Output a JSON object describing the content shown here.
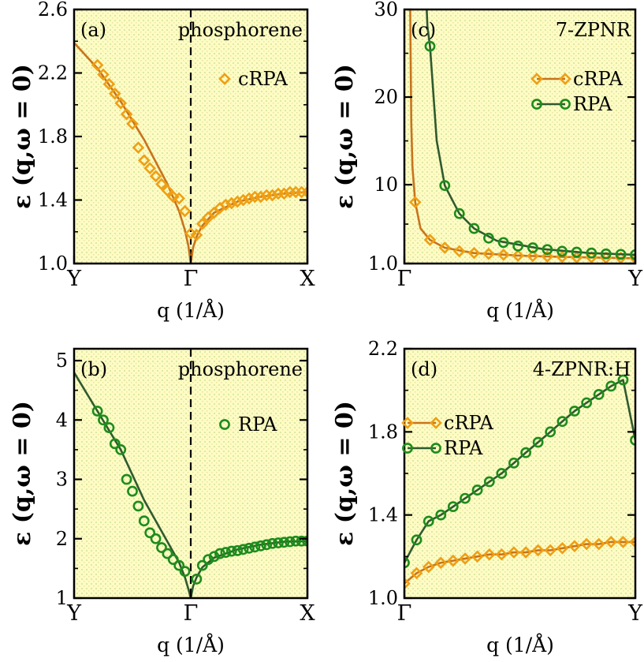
{
  "colors": {
    "crpa": "#ef9f14",
    "crpa_line": "#c8731c",
    "rpa": "#1d8c1d",
    "rpa_line": "#2f5a2f",
    "panel_bg": "#fdfcc4",
    "dot": "#d7e9a0"
  },
  "chart_data": [
    {
      "id": "a",
      "type": "line",
      "label": "(a)",
      "title": "phosphorene",
      "xlabel": "q (1/Å)",
      "ylabel": "ε (q,ω = 0)",
      "xlim": [
        0,
        2
      ],
      "ylim": [
        1.0,
        2.6
      ],
      "yticks": [
        1.0,
        1.4,
        1.8,
        2.2,
        2.6
      ],
      "ytick_labels": [
        "1.0",
        "1.4",
        "1.8",
        "2.2",
        "2.6"
      ],
      "xticks": [
        0,
        1,
        2
      ],
      "xtick_labels": [
        "Y",
        "Γ",
        "X"
      ],
      "vline": 1,
      "curve": {
        "x": [
          0,
          0.2,
          0.4,
          0.6,
          0.8,
          0.9,
          0.95,
          0.98,
          1.0,
          1.02,
          1.05,
          1.1,
          1.2,
          1.4,
          1.6,
          1.8,
          2.0
        ],
        "y": [
          2.39,
          2.23,
          2.02,
          1.78,
          1.5,
          1.33,
          1.21,
          1.11,
          1.0,
          1.1,
          1.17,
          1.24,
          1.32,
          1.39,
          1.42,
          1.44,
          1.45
        ]
      },
      "series": [
        {
          "name": "cRPA",
          "marker": "diamond",
          "x": [
            0.2,
            0.25,
            0.3,
            0.35,
            0.4,
            0.45,
            0.5,
            0.55,
            0.6,
            0.65,
            0.7,
            0.75,
            0.8,
            0.85,
            0.9,
            0.95,
            1.0,
            1.05,
            1.1,
            1.15,
            1.2,
            1.25,
            1.3,
            1.35,
            1.4,
            1.45,
            1.5,
            1.55,
            1.6,
            1.65,
            1.7,
            1.75,
            1.8,
            1.85,
            1.9,
            1.95,
            2.0
          ],
          "y": [
            2.25,
            2.19,
            2.13,
            2.07,
            2.01,
            1.94,
            1.88,
            1.73,
            1.65,
            1.6,
            1.55,
            1.5,
            1.46,
            1.42,
            1.41,
            1.33,
            1.19,
            1.18,
            1.25,
            1.29,
            1.32,
            1.35,
            1.37,
            1.38,
            1.39,
            1.4,
            1.41,
            1.42,
            1.42,
            1.43,
            1.43,
            1.44,
            1.44,
            1.45,
            1.45,
            1.45,
            1.45
          ]
        }
      ],
      "legend": [
        "cRPA"
      ]
    },
    {
      "id": "b",
      "type": "line",
      "label": "(b)",
      "title": "phosphorene",
      "xlabel": "q (1/Å)",
      "ylabel": "ε (q,ω = 0)",
      "xlim": [
        0,
        2
      ],
      "ylim": [
        1,
        5.2
      ],
      "yticks": [
        1,
        2,
        3,
        4,
        5
      ],
      "ytick_labels": [
        "1",
        "2",
        "3",
        "4",
        "5"
      ],
      "xticks": [
        0,
        1,
        2
      ],
      "xtick_labels": [
        "Y",
        "Γ",
        "X"
      ],
      "vline": 1,
      "curve": {
        "x": [
          0,
          0.2,
          0.4,
          0.6,
          0.8,
          0.9,
          0.95,
          0.98,
          1.0,
          1.02,
          1.05,
          1.1,
          1.2,
          1.4,
          1.6,
          1.8,
          2.0
        ],
        "y": [
          4.8,
          4.15,
          3.5,
          2.65,
          1.95,
          1.6,
          1.35,
          1.15,
          1.0,
          1.2,
          1.35,
          1.52,
          1.68,
          1.82,
          1.9,
          1.95,
          1.96
        ]
      },
      "series": [
        {
          "name": "RPA",
          "marker": "circle",
          "x": [
            0.2,
            0.25,
            0.3,
            0.35,
            0.4,
            0.45,
            0.5,
            0.55,
            0.6,
            0.65,
            0.7,
            0.75,
            0.8,
            0.85,
            0.9,
            0.95,
            1.05,
            1.1,
            1.15,
            1.2,
            1.25,
            1.3,
            1.35,
            1.4,
            1.45,
            1.5,
            1.55,
            1.6,
            1.65,
            1.7,
            1.75,
            1.8,
            1.85,
            1.9,
            1.95,
            2.0
          ],
          "y": [
            4.15,
            4.0,
            3.87,
            3.6,
            3.5,
            3.0,
            2.8,
            2.55,
            2.3,
            2.1,
            2.0,
            1.85,
            1.75,
            1.65,
            1.55,
            1.45,
            1.32,
            1.55,
            1.65,
            1.7,
            1.75,
            1.77,
            1.79,
            1.8,
            1.82,
            1.84,
            1.86,
            1.88,
            1.9,
            1.92,
            1.93,
            1.94,
            1.95,
            1.96,
            1.96,
            1.96
          ]
        }
      ],
      "legend": [
        "RPA"
      ]
    },
    {
      "id": "c",
      "type": "line",
      "label": "(c)",
      "title": "7-ZPNR",
      "xlabel": "q (1/Å)",
      "ylabel": "ε (q,ω = 0)",
      "xlim": [
        0,
        1
      ],
      "ylim": [
        1.0,
        30
      ],
      "yticks": [
        1.0,
        10,
        20,
        30
      ],
      "ytick_labels": [
        "1.0",
        "10",
        "20",
        "30"
      ],
      "xticks": [
        0,
        1
      ],
      "xtick_labels": [
        "Γ",
        "Y"
      ],
      "series": [
        {
          "name": "cRPA",
          "marker": "diamond",
          "x": [
            0.047,
            0.111,
            0.175,
            0.238,
            0.302,
            0.365,
            0.429,
            0.492,
            0.556,
            0.619,
            0.683,
            0.746,
            0.81,
            0.873,
            0.937,
            1.0
          ],
          "y": [
            8,
            3.7,
            2.8,
            2.4,
            2.2,
            2.1,
            2.0,
            1.9,
            1.85,
            1.8,
            1.75,
            1.7,
            1.7,
            1.65,
            1.65,
            1.6
          ],
          "line_x": [
            0.025,
            0.027,
            0.03,
            0.035,
            0.047,
            0.07,
            0.111,
            0.175,
            0.3,
            0.5,
            0.7,
            1.0
          ],
          "line_y": [
            31,
            25,
            17,
            12,
            8,
            5,
            3.7,
            2.8,
            2.2,
            1.9,
            1.75,
            1.6
          ]
        },
        {
          "name": "RPA",
          "marker": "circle",
          "x": [
            0.111,
            0.175,
            0.238,
            0.302,
            0.365,
            0.429,
            0.492,
            0.556,
            0.619,
            0.683,
            0.746,
            0.81,
            0.873,
            0.937,
            1.0
          ],
          "y": [
            25.8,
            9.9,
            6.7,
            5.0,
            3.9,
            3.4,
            3.0,
            2.8,
            2.6,
            2.4,
            2.3,
            2.2,
            2.1,
            2.05,
            2.0
          ],
          "line_x": [
            0.095,
            0.1,
            0.111,
            0.14,
            0.175,
            0.238,
            0.302,
            0.4,
            0.6,
            0.8,
            1.0
          ],
          "line_y": [
            31,
            28,
            25.8,
            15,
            9.9,
            6.7,
            5.0,
            3.6,
            2.65,
            2.2,
            2.0
          ]
        }
      ],
      "legend": [
        "cRPA",
        "RPA"
      ]
    },
    {
      "id": "d",
      "type": "line",
      "label": "(d)",
      "title": "4-ZPNR:H",
      "xlabel": "q (1/Å)",
      "ylabel": "ε (q,ω = 0)",
      "xlim": [
        0,
        1
      ],
      "ylim": [
        1.0,
        2.2
      ],
      "yticks": [
        1.0,
        1.4,
        1.8,
        2.2
      ],
      "ytick_labels": [
        "1.0",
        "1.4",
        "1.8",
        "2.2"
      ],
      "xticks": [
        0,
        1
      ],
      "xtick_labels": [
        "Γ",
        "Y"
      ],
      "series": [
        {
          "name": "cRPA",
          "marker": "diamond",
          "x": [
            0.0,
            0.053,
            0.105,
            0.158,
            0.211,
            0.263,
            0.316,
            0.368,
            0.421,
            0.474,
            0.526,
            0.579,
            0.632,
            0.684,
            0.737,
            0.789,
            0.842,
            0.895,
            0.947,
            1.0
          ],
          "y": [
            1.07,
            1.12,
            1.15,
            1.17,
            1.18,
            1.19,
            1.2,
            1.21,
            1.21,
            1.22,
            1.22,
            1.23,
            1.23,
            1.24,
            1.25,
            1.26,
            1.26,
            1.27,
            1.27,
            1.27
          ]
        },
        {
          "name": "RPA",
          "marker": "circle",
          "x": [
            0.0,
            0.053,
            0.105,
            0.158,
            0.211,
            0.263,
            0.316,
            0.368,
            0.421,
            0.474,
            0.526,
            0.579,
            0.632,
            0.684,
            0.737,
            0.789,
            0.842,
            0.895,
            0.947,
            1.0
          ],
          "y": [
            1.17,
            1.28,
            1.37,
            1.4,
            1.44,
            1.48,
            1.52,
            1.56,
            1.6,
            1.65,
            1.7,
            1.75,
            1.8,
            1.85,
            1.9,
            1.94,
            1.98,
            2.02,
            2.05,
            1.76
          ]
        }
      ],
      "legend": [
        "cRPA",
        "RPA"
      ]
    }
  ]
}
